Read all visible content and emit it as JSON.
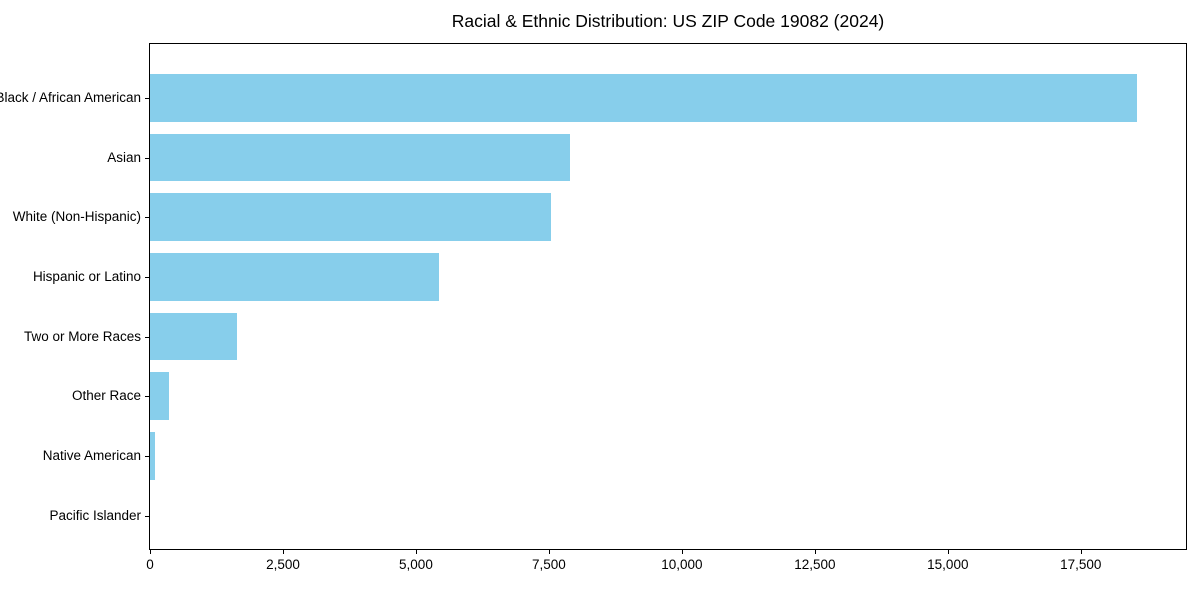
{
  "chart_data": {
    "type": "bar",
    "orientation": "horizontal",
    "title": "Racial & Ethnic Distribution: US ZIP Code 19082 (2024)",
    "xlabel": "",
    "ylabel": "",
    "categories": [
      "Black / African American",
      "Asian",
      "White (Non-Hispanic)",
      "Hispanic or Latino",
      "Two or More Races",
      "Other Race",
      "Native American",
      "Pacific Islander"
    ],
    "values": [
      18550,
      7890,
      7530,
      5430,
      1630,
      360,
      100,
      0
    ],
    "xlim": [
      0,
      19478
    ],
    "xticks": [
      0,
      2500,
      5000,
      7500,
      10000,
      12500,
      15000,
      17500
    ],
    "xtick_labels": [
      "0",
      "2,500",
      "5,000",
      "7,500",
      "10,000",
      "12,500",
      "15,000",
      "17,500"
    ],
    "bar_color": "#87CEEB",
    "grid": false,
    "legend": false,
    "spine_color": "#000000"
  }
}
